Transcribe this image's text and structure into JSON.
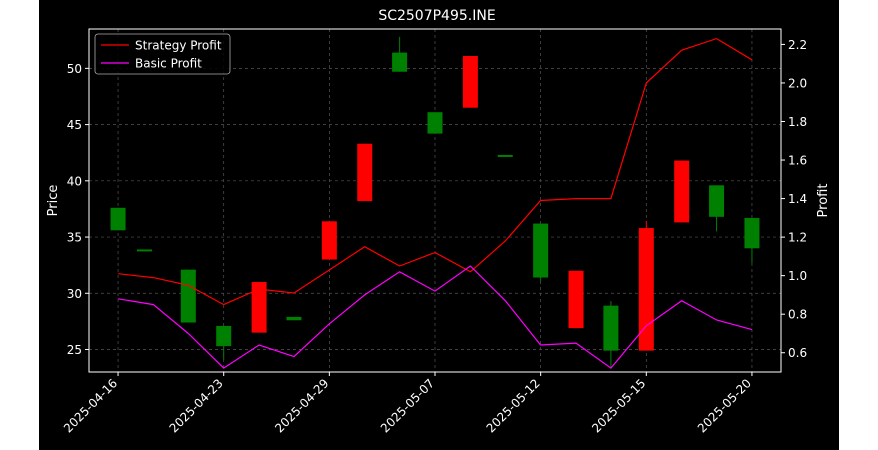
{
  "chart_data": {
    "type": "candlestick",
    "title": "SC2507P495.INE",
    "xlabel": "",
    "ylabel": "Price",
    "y2label": "Profit",
    "ylim": [
      23,
      53.5
    ],
    "y2lim": [
      0.5,
      2.28
    ],
    "yticks": [
      25,
      30,
      35,
      40,
      45,
      50
    ],
    "y2ticks": [
      0.6,
      0.8,
      1.0,
      1.2,
      1.4,
      1.6,
      1.8,
      2.0,
      2.2
    ],
    "y2ticklabels": [
      "0.6",
      "0.8",
      "1.0",
      "1.2",
      "1.4",
      "1.6",
      "1.8",
      "2.0",
      "2.2"
    ],
    "xticks": [
      {
        "index": 0,
        "label": "2025-04-16"
      },
      {
        "index": 2,
        "label": "2025-04-23"
      },
      {
        "index": 4,
        "label": "2025-04-29"
      },
      {
        "index": 6,
        "label": "2025-05-07"
      },
      {
        "index": 8,
        "label": "2025-05-12"
      },
      {
        "index": 10,
        "label": "2025-05-15"
      },
      {
        "index": 12,
        "label": "2025-05-20"
      }
    ],
    "grid": true,
    "legend": {
      "placement": "top-left",
      "entries": [
        "Strategy Profit",
        "Basic Profit"
      ]
    },
    "colors": {
      "up": "#008000",
      "down": "#ff0000",
      "strategy": "#ff0000",
      "basic": "#ff00ff",
      "background": "#000000",
      "text": "#ffffff"
    },
    "candles": [
      {
        "i": 0.0,
        "open": 35.6,
        "high": 37.6,
        "low": 35.6,
        "close": 37.6
      },
      {
        "i": 0.5,
        "open": 33.9,
        "high": 33.9,
        "low": 33.9,
        "close": 33.9
      },
      {
        "i": 1.33,
        "open": 27.4,
        "high": 32.1,
        "low": 27.4,
        "close": 32.1
      },
      {
        "i": 2.0,
        "open": 25.3,
        "high": 27.1,
        "low": 24.1,
        "close": 27.1
      },
      {
        "i": 2.67,
        "open": 31.0,
        "high": 31.0,
        "low": 26.5,
        "close": 26.5
      },
      {
        "i": 3.33,
        "open": 27.6,
        "high": 27.9,
        "low": 27.6,
        "close": 27.9
      },
      {
        "i": 4.0,
        "open": 36.4,
        "high": 36.4,
        "low": 33.0,
        "close": 33.0
      },
      {
        "i": 4.67,
        "open": 43.3,
        "high": 43.3,
        "low": 38.2,
        "close": 38.2
      },
      {
        "i": 5.33,
        "open": 49.7,
        "high": 52.8,
        "low": 49.7,
        "close": 51.4
      },
      {
        "i": 6.0,
        "open": 44.2,
        "high": 46.1,
        "low": 44.2,
        "close": 46.1
      },
      {
        "i": 6.67,
        "open": 51.1,
        "high": 51.1,
        "low": 46.5,
        "close": 46.5
      },
      {
        "i": 7.33,
        "open": 42.2,
        "high": 42.3,
        "low": 42.2,
        "close": 42.3
      },
      {
        "i": 8.0,
        "open": 31.4,
        "high": 36.2,
        "low": 31.1,
        "close": 36.2
      },
      {
        "i": 8.67,
        "open": 32.0,
        "high": 32.0,
        "low": 26.9,
        "close": 26.9
      },
      {
        "i": 9.33,
        "open": 24.9,
        "high": 29.3,
        "low": 23.3,
        "close": 28.9
      },
      {
        "i": 10.0,
        "open": 35.8,
        "high": 36.4,
        "low": 24.9,
        "close": 24.9
      },
      {
        "i": 10.67,
        "open": 41.8,
        "high": 41.8,
        "low": 36.3,
        "close": 36.3
      },
      {
        "i": 11.33,
        "open": 36.8,
        "high": 39.6,
        "low": 35.5,
        "close": 39.6
      },
      {
        "i": 12.0,
        "open": 34.0,
        "high": 36.7,
        "low": 32.7,
        "close": 36.7
      }
    ],
    "series": [
      {
        "name": "Strategy Profit",
        "x": [
          0,
          0.67,
          1.33,
          2.0,
          2.67,
          3.33,
          4.0,
          4.67,
          5.33,
          6.0,
          6.67,
          7.33,
          8.0,
          8.67,
          9.33,
          10.0,
          10.67,
          11.33,
          12.0
        ],
        "values": [
          1.01,
          0.99,
          0.95,
          0.85,
          0.93,
          0.91,
          1.03,
          1.15,
          1.05,
          1.12,
          1.02,
          1.18,
          1.39,
          1.4,
          1.4,
          2.0,
          2.17,
          2.23,
          2.12
        ]
      },
      {
        "name": "Basic Profit",
        "x": [
          0,
          0.67,
          1.33,
          2.0,
          2.67,
          3.33,
          4.0,
          4.67,
          5.33,
          6.0,
          6.67,
          7.33,
          8.0,
          8.67,
          9.33,
          10.0,
          10.67,
          11.33,
          12.0
        ],
        "values": [
          0.88,
          0.85,
          0.7,
          0.52,
          0.64,
          0.58,
          0.75,
          0.9,
          1.02,
          0.92,
          1.05,
          0.87,
          0.64,
          0.65,
          0.52,
          0.74,
          0.87,
          0.77,
          0.72
        ]
      }
    ]
  }
}
